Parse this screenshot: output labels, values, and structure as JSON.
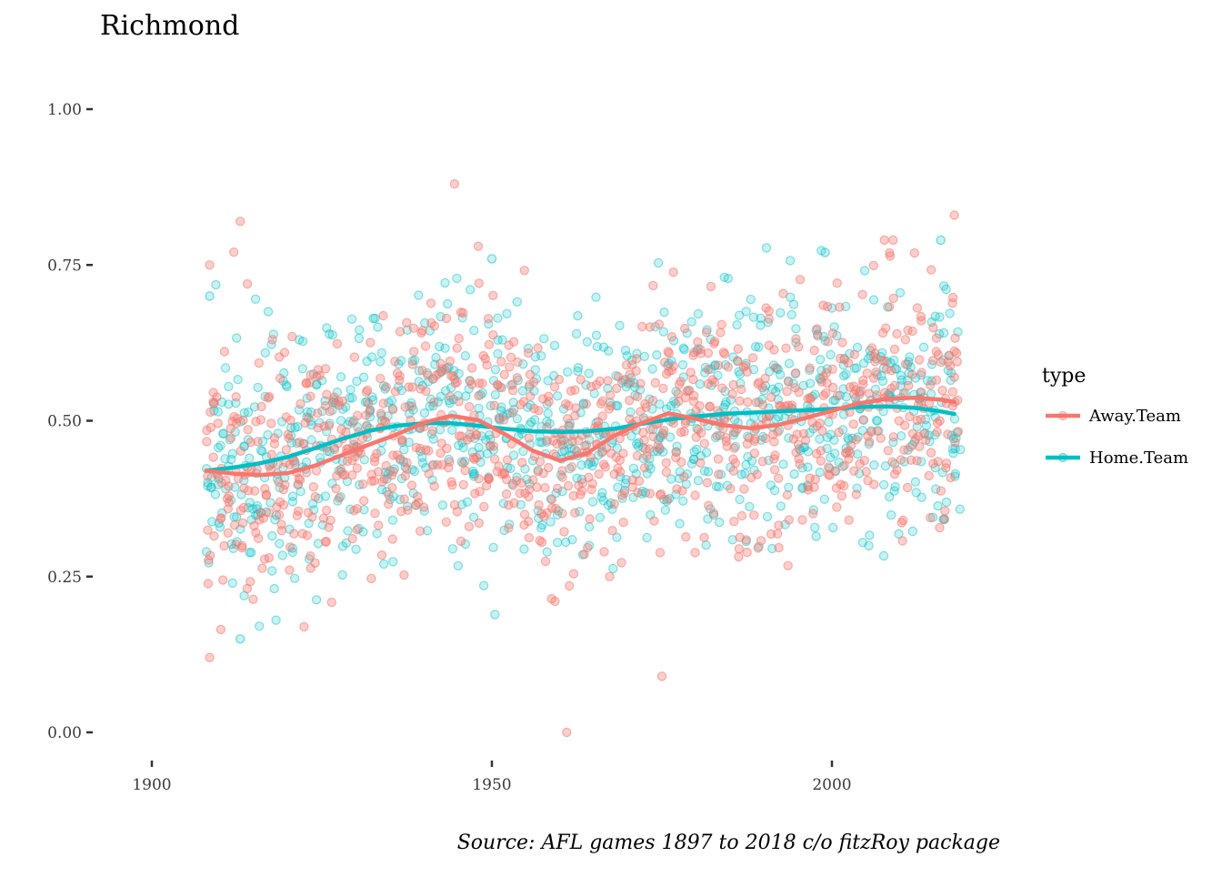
{
  "chart_data": {
    "type": "scatter",
    "title": "Richmond",
    "caption": "Source: AFL games 1897 to 2018 c/o fitzRoy package",
    "xlabel": "",
    "ylabel": "",
    "xlim": [
      1892,
      2028
    ],
    "ylim": [
      -0.05,
      1.07
    ],
    "x_ticks": [
      1900,
      1950,
      2000
    ],
    "x_tick_labels": [
      "1900",
      "1950",
      "2000"
    ],
    "y_ticks": [
      0,
      0.25,
      0.5,
      0.75,
      1.0
    ],
    "y_tick_labels": [
      "0.00",
      "0.25",
      "0.50",
      "0.75",
      "1.00"
    ],
    "grid": false,
    "legend": {
      "title": "type",
      "placement": "right"
    },
    "series": [
      {
        "name": "Away.Team",
        "color": "#F8766D",
        "points_note_seed": 11,
        "trend": {
          "x": [
            1908,
            1912,
            1916,
            1920,
            1924,
            1928,
            1932,
            1936,
            1940,
            1944,
            1948,
            1952,
            1956,
            1960,
            1964,
            1968,
            1972,
            1976,
            1980,
            1984,
            1988,
            1992,
            1996,
            2000,
            2004,
            2008,
            2012,
            2016,
            2018
          ],
          "y": [
            0.42,
            0.415,
            0.413,
            0.416,
            0.428,
            0.445,
            0.462,
            0.478,
            0.497,
            0.508,
            0.501,
            0.478,
            0.452,
            0.436,
            0.448,
            0.476,
            0.496,
            0.512,
            0.503,
            0.493,
            0.488,
            0.493,
            0.504,
            0.516,
            0.528,
            0.535,
            0.537,
            0.534,
            0.53
          ]
        }
      },
      {
        "name": "Home.Team",
        "color": "#00BFC4",
        "points_note_seed": 29,
        "trend": {
          "x": [
            1908,
            1912,
            1916,
            1920,
            1924,
            1928,
            1932,
            1936,
            1940,
            1944,
            1948,
            1952,
            1956,
            1960,
            1964,
            1968,
            1972,
            1976,
            1980,
            1984,
            1988,
            1992,
            1996,
            2000,
            2004,
            2008,
            2012,
            2016,
            2018
          ],
          "y": [
            0.42,
            0.425,
            0.432,
            0.442,
            0.456,
            0.471,
            0.484,
            0.492,
            0.496,
            0.496,
            0.492,
            0.487,
            0.483,
            0.482,
            0.483,
            0.487,
            0.495,
            0.502,
            0.507,
            0.511,
            0.513,
            0.515,
            0.517,
            0.519,
            0.522,
            0.523,
            0.521,
            0.515,
            0.511
          ]
        }
      }
    ],
    "points": {
      "x_range": [
        1908,
        2018
      ],
      "per_year": 9,
      "highlights": [
        {
          "series": "Away.Team",
          "x": 1944.5,
          "y": 0.88
        },
        {
          "series": "Away.Team",
          "x": 1913,
          "y": 0.82
        },
        {
          "series": "Away.Team",
          "x": 2018,
          "y": 0.83
        },
        {
          "series": "Away.Team",
          "x": 1975,
          "y": 0.09
        },
        {
          "series": "Away.Team",
          "x": 1961,
          "y": 0.0
        },
        {
          "series": "Away.Team",
          "x": 1908.5,
          "y": 0.12
        },
        {
          "series": "Away.Team",
          "x": 1908.5,
          "y": 0.75
        },
        {
          "series": "Away.Team",
          "x": 1948,
          "y": 0.78
        },
        {
          "series": "Away.Team",
          "x": 2009,
          "y": 0.79
        },
        {
          "series": "Home.Team",
          "x": 1950,
          "y": 0.76
        },
        {
          "series": "Home.Team",
          "x": 1999,
          "y": 0.77
        },
        {
          "series": "Home.Team",
          "x": 2016,
          "y": 0.79
        },
        {
          "series": "Home.Team",
          "x": 1913,
          "y": 0.15
        },
        {
          "series": "Home.Team",
          "x": 1908.5,
          "y": 0.7
        }
      ]
    }
  }
}
